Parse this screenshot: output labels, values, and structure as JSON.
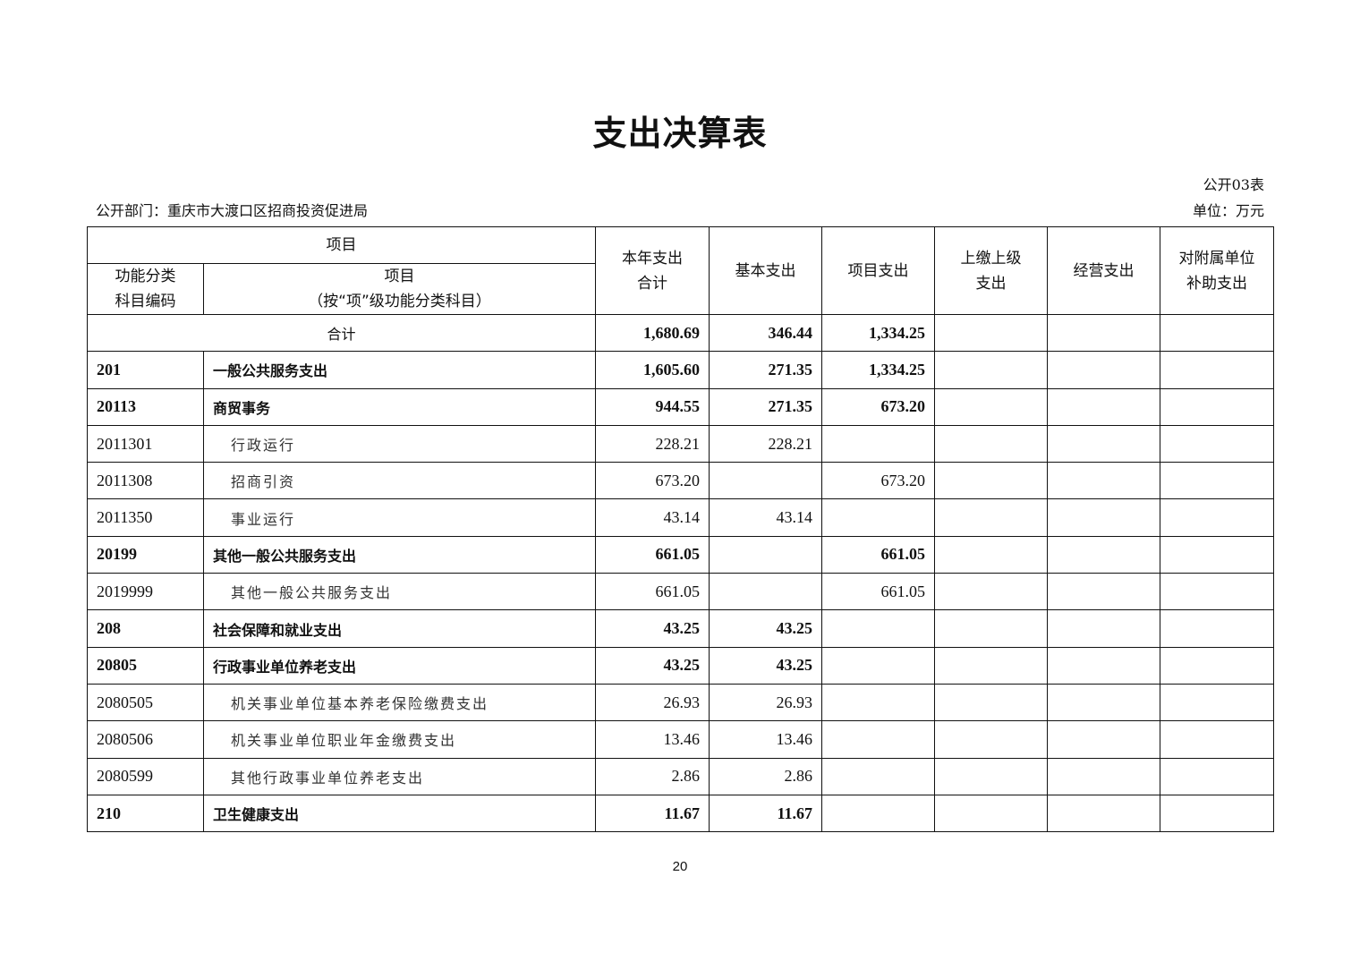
{
  "title": "支出决算表",
  "table_no": "公开03表",
  "department": "公开部门：重庆市大渡口区招商投资促进局",
  "unit": "单位：万元",
  "headers": {
    "item": "项目",
    "code": "功能分类科目编码",
    "item_name": "项目",
    "item_name_sub": "（按“项”级功能分类科目）",
    "total": "本年支出合计",
    "basic": "基本支出",
    "project": "项目支出",
    "upper": "上缴上级支出",
    "business": "经营支出",
    "subsidy": "对附属单位补助支出"
  },
  "total_row": {
    "label": "合计",
    "total": "1,680.69",
    "basic": "346.44",
    "project": "1,334.25",
    "upper": "",
    "business": "",
    "subsidy": ""
  },
  "rows": [
    {
      "code": "201",
      "name": "一般公共服务支出",
      "total": "1,605.60",
      "basic": "271.35",
      "project": "1,334.25",
      "level": "bold"
    },
    {
      "code": "20113",
      "name": "商贸事务",
      "total": "944.55",
      "basic": "271.35",
      "project": "673.20",
      "level": "bold"
    },
    {
      "code": "2011301",
      "name": "行政运行",
      "total": "228.21",
      "basic": "228.21",
      "project": "",
      "level": "indent"
    },
    {
      "code": "2011308",
      "name": "招商引资",
      "total": "673.20",
      "basic": "",
      "project": "673.20",
      "level": "indent"
    },
    {
      "code": "2011350",
      "name": "事业运行",
      "total": "43.14",
      "basic": "43.14",
      "project": "",
      "level": "indent"
    },
    {
      "code": "20199",
      "name": "其他一般公共服务支出",
      "total": "661.05",
      "basic": "",
      "project": "661.05",
      "level": "bold"
    },
    {
      "code": "2019999",
      "name": "其他一般公共服务支出",
      "total": "661.05",
      "basic": "",
      "project": "661.05",
      "level": "indent"
    },
    {
      "code": "208",
      "name": "社会保障和就业支出",
      "total": "43.25",
      "basic": "43.25",
      "project": "",
      "level": "bold"
    },
    {
      "code": "20805",
      "name": "行政事业单位养老支出",
      "total": "43.25",
      "basic": "43.25",
      "project": "",
      "level": "bold"
    },
    {
      "code": "2080505",
      "name": "机关事业单位基本养老保险缴费支出",
      "total": "26.93",
      "basic": "26.93",
      "project": "",
      "level": "indent"
    },
    {
      "code": "2080506",
      "name": "机关事业单位职业年金缴费支出",
      "total": "13.46",
      "basic": "13.46",
      "project": "",
      "level": "indent"
    },
    {
      "code": "2080599",
      "name": "其他行政事业单位养老支出",
      "total": "2.86",
      "basic": "2.86",
      "project": "",
      "level": "indent"
    },
    {
      "code": "210",
      "name": "卫生健康支出",
      "total": "11.67",
      "basic": "11.67",
      "project": "",
      "level": "bold"
    }
  ],
  "page_number": "20"
}
